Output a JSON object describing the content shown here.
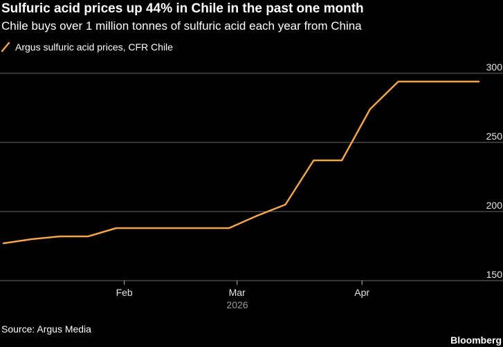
{
  "header": {
    "title": "Sulfuric acid prices up 44% in Chile in the past one month",
    "subtitle": "Chile buys over 1 million tonnes of sulfuric acid each year from China"
  },
  "footer": {
    "source": "Source: Argus Media",
    "brand": "Bloomberg"
  },
  "colors": {
    "background": "#000000",
    "series": "#f2a54a",
    "grid": "#6e6e6e"
  },
  "icons": {
    "legend": "orange-slash-line-swatch"
  },
  "chart_data": {
    "type": "line",
    "title": "Sulfuric acid prices up 44% in Chile in the past one month",
    "subtitle": "Chile buys over 1 million tonnes of sulfuric acid each year from China",
    "xlabel": "2026",
    "ylabel": "",
    "x_ticks": [
      "Feb",
      "Mar",
      "Apr"
    ],
    "x_tick_dates": [
      "2026-02-01",
      "2026-03-01",
      "2026-04-01"
    ],
    "xlim": [
      "2026-01-02",
      "2026-04-30"
    ],
    "y_ticks": [
      150,
      200,
      250,
      300
    ],
    "ylim": [
      150,
      300
    ],
    "y_axis_side": "right",
    "grid": true,
    "legend": "top-left",
    "series": [
      {
        "name": "Argus sulfuric acid prices, CFR Chile",
        "color": "#f2a54a",
        "x": [
          "2026-01-02",
          "2026-01-09",
          "2026-01-16",
          "2026-01-23",
          "2026-01-30",
          "2026-02-06",
          "2026-02-13",
          "2026-02-20",
          "2026-02-27",
          "2026-03-06",
          "2026-03-13",
          "2026-03-20",
          "2026-03-27",
          "2026-04-03",
          "2026-04-10",
          "2026-04-17",
          "2026-04-24",
          "2026-04-30"
        ],
        "values": [
          177,
          180,
          182,
          182,
          188,
          188,
          188,
          188,
          188,
          197,
          205,
          237,
          237,
          274,
          294,
          294,
          294,
          294
        ]
      }
    ]
  }
}
